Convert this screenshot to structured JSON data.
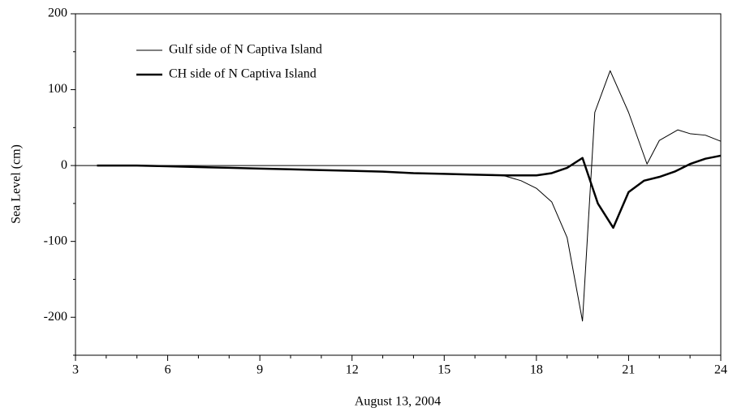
{
  "chart_data": {
    "type": "line",
    "xlabel": "August 13, 2004",
    "ylabel": "Sea Level (cm)",
    "xlim": [
      3,
      24
    ],
    "xticks": [
      3,
      6,
      9,
      12,
      15,
      18,
      21,
      24
    ],
    "xminorticks": [
      4,
      5,
      7,
      8,
      10,
      11,
      13,
      14,
      16,
      17,
      19,
      20,
      22,
      23
    ],
    "ylim": [
      -250,
      200
    ],
    "yticks": [
      -200,
      -100,
      0,
      100,
      200
    ],
    "yminorticks": [
      -250,
      -150,
      -50,
      50,
      150
    ],
    "reference_line": 0,
    "legend": "upper left",
    "series": [
      {
        "name": "Gulf side of N Captiva Island",
        "color": "#000000",
        "linewidth": 1,
        "x": [
          3.7,
          5,
          6,
          7,
          8,
          9,
          10,
          11,
          12,
          13,
          14,
          15,
          16,
          16.6,
          17,
          17.5,
          18,
          18.5,
          19,
          19.5,
          19.9,
          20.4,
          21,
          21.6,
          22,
          22.6,
          23,
          23.5,
          24
        ],
        "values": [
          0,
          0,
          -1,
          -2,
          -3,
          -4,
          -5,
          -6,
          -7,
          -8,
          -10,
          -11,
          -12,
          -12,
          -14,
          -20,
          -30,
          -48,
          -95,
          -205,
          70,
          125,
          70,
          2,
          33,
          47,
          42,
          40,
          32
        ]
      },
      {
        "name": "CH side of N Captiva Island",
        "color": "#000000",
        "linewidth": 2.5,
        "x": [
          3.7,
          5,
          6,
          7,
          8,
          9,
          10,
          11,
          12,
          13,
          14,
          15,
          16,
          17,
          18,
          18.5,
          19,
          19.5,
          20,
          20.5,
          21,
          21.5,
          22,
          22.5,
          23,
          23.5,
          24
        ],
        "values": [
          0,
          0,
          -1,
          -2,
          -3,
          -4,
          -5,
          -6,
          -7,
          -8,
          -10,
          -11,
          -12,
          -13,
          -13,
          -10,
          -3,
          10,
          -50,
          -82,
          -35,
          -20,
          -15,
          -8,
          2,
          9,
          13
        ]
      }
    ]
  }
}
